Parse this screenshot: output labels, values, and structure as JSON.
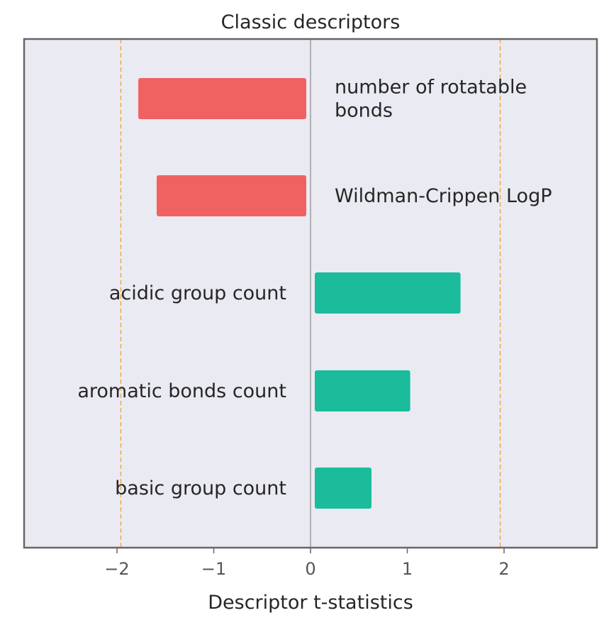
{
  "chart_data": {
    "type": "bar",
    "orientation": "horizontal",
    "title": "Classic descriptors",
    "xlabel": "Descriptor t-statistics",
    "ylabel": "",
    "xlim": [
      -3,
      3
    ],
    "xticks": [
      -2,
      -1,
      0,
      1,
      2
    ],
    "xtick_labels": [
      "−2",
      "−1",
      "0",
      "1",
      "2"
    ],
    "grid": false,
    "reference_lines": [
      -1.96,
      1.96
    ],
    "categories": [
      "number of rotatable bonds",
      "Wildman-Crippen LogP",
      "acidic group count",
      "aromatic bonds count",
      "basic group count"
    ],
    "category_label_lines": [
      [
        "number of rotatable",
        "bonds"
      ],
      [
        "Wildman-Crippen LogP"
      ],
      [
        "acidic group count"
      ],
      [
        "aromatic bonds count"
      ],
      [
        "basic group count"
      ]
    ],
    "values": [
      -1.78,
      -1.59,
      1.55,
      1.03,
      0.63
    ],
    "colors": {
      "negative": "#f06262",
      "positive": "#1abc9c",
      "reference_line": "#f5a742",
      "zero_line": "#8a8a8a",
      "plot_background": "#eaeaf2",
      "frame": "#666666"
    }
  }
}
